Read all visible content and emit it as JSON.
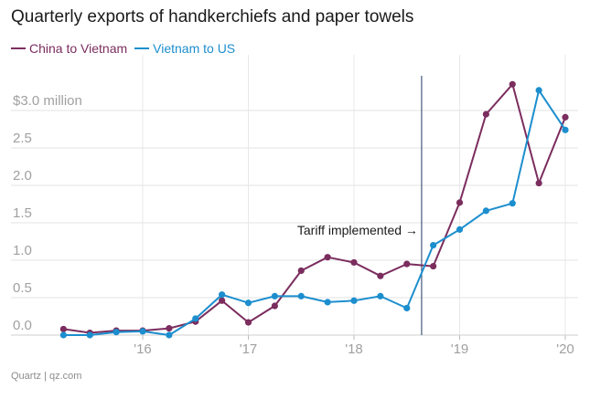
{
  "title": "Quarterly exports of handkerchiefs and paper towels",
  "source": "Quartz | qz.com",
  "chart_data": {
    "type": "line",
    "title": "Quarterly exports of handkerchiefs and paper towels",
    "ylim": [
      0,
      3.0
    ],
    "y_ticks": [
      {
        "value": 0.0,
        "label": "0.0"
      },
      {
        "value": 0.5,
        "label": "0.5"
      },
      {
        "value": 1.0,
        "label": "1.0"
      },
      {
        "value": 1.5,
        "label": "1.5"
      },
      {
        "value": 2.0,
        "label": "2.0"
      },
      {
        "value": 2.5,
        "label": "2.5"
      },
      {
        "value": 3.0,
        "label": "$3.0 million"
      }
    ],
    "x_ticks": [
      {
        "value": 2016,
        "label": "'16"
      },
      {
        "value": 2017,
        "label": "'17"
      },
      {
        "value": 2018,
        "label": "'18"
      },
      {
        "value": 2019,
        "label": "'19"
      },
      {
        "value": 2020,
        "label": "'20"
      }
    ],
    "grid": true,
    "legend_position": "top-left",
    "series": [
      {
        "name": "China to Vietnam",
        "color": "#7b2d5e",
        "x": [
          2015.25,
          2015.5,
          2015.75,
          2016.0,
          2016.25,
          2016.5,
          2016.75,
          2017.0,
          2017.25,
          2017.5,
          2017.75,
          2018.0,
          2018.25,
          2018.5,
          2018.75,
          2019.0,
          2019.25,
          2019.5,
          2019.75,
          2020.0
        ],
        "values": [
          0.08,
          0.03,
          0.06,
          0.06,
          0.09,
          0.18,
          0.46,
          0.17,
          0.39,
          0.86,
          1.04,
          0.97,
          0.79,
          0.95,
          0.92,
          1.77,
          2.95,
          3.35,
          2.03,
          2.91
        ]
      },
      {
        "name": "Vietnam to US",
        "color": "#1c8ece",
        "x": [
          2015.25,
          2015.5,
          2015.75,
          2016.0,
          2016.25,
          2016.5,
          2016.75,
          2017.0,
          2017.25,
          2017.5,
          2017.75,
          2018.0,
          2018.25,
          2018.5,
          2018.75,
          2019.0,
          2019.25,
          2019.5,
          2019.75,
          2020.0
        ],
        "values": [
          0.0,
          0.0,
          0.04,
          0.05,
          0.0,
          0.22,
          0.54,
          0.43,
          0.52,
          0.52,
          0.44,
          0.46,
          0.52,
          0.36,
          1.2,
          1.41,
          1.66,
          1.76,
          3.27,
          2.74
        ]
      }
    ],
    "annotations": [
      {
        "label": "Tariff implemented →",
        "x": 2018.64,
        "line_color": "#1f3a5f"
      }
    ]
  }
}
